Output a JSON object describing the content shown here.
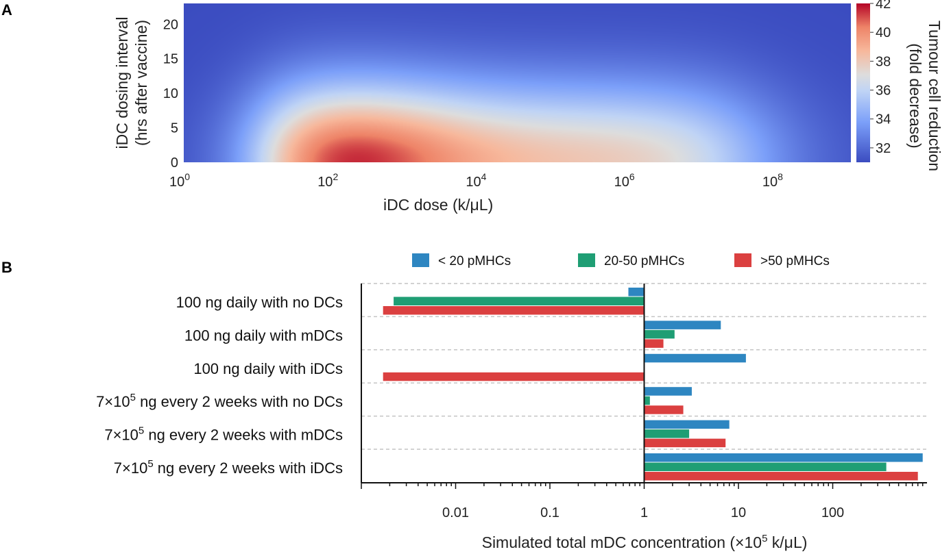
{
  "panel_a_label": "A",
  "panel_b_label": "B",
  "chart_data": [
    {
      "type": "heatmap",
      "panel": "A",
      "xlabel": "iDC dose (k/μL)",
      "ylabel_line1": "iDC dosing interval",
      "ylabel_line2": "(hrs after vaccine)",
      "xscale": "log",
      "xlim_exponent": [
        0,
        9
      ],
      "ylim": [
        0,
        23
      ],
      "x_ticks": [
        {
          "base": "10",
          "exp": "0",
          "value": 1
        },
        {
          "base": "10",
          "exp": "2",
          "value": 100
        },
        {
          "base": "10",
          "exp": "4",
          "value": 10000
        },
        {
          "base": "10",
          "exp": "6",
          "value": 1000000
        },
        {
          "base": "10",
          "exp": "8",
          "value": 100000000
        }
      ],
      "y_ticks": [
        0,
        5,
        10,
        15,
        20
      ],
      "colorbar": {
        "label_line1": "Tumour cell reduction",
        "label_line2": "(fold decrease)",
        "range": [
          31,
          42
        ],
        "ticks": [
          32,
          34,
          36,
          38,
          40,
          42
        ],
        "colormap": "coolwarm",
        "low_color": "#3b4cc0",
        "mid_color": "#dddddd",
        "high_color": "#b40426"
      },
      "peak": {
        "dose_log10": 2,
        "interval_hrs": 0,
        "value": 42
      }
    },
    {
      "type": "bar",
      "panel": "B",
      "orientation": "horizontal",
      "xscale": "log",
      "xlabel": "Simulated total mDC concentration (×10",
      "xlabel_exp": "5",
      "xlabel_tail": " k/μL)",
      "baseline": 1,
      "xlim": [
        0.001,
        1000
      ],
      "x_ticks": [
        "0.01",
        "0.1",
        "1",
        "10",
        "100"
      ],
      "x_tick_values": [
        0.01,
        0.1,
        1,
        10,
        100
      ],
      "legend": [
        {
          "name": "< 20 pMHCs",
          "color": "#2e86c1"
        },
        {
          "name": "20-50 pMHCs",
          "color": "#1f9e74"
        },
        {
          "name": ">50 pMHCs",
          "color": "#db4040"
        }
      ],
      "categories": [
        {
          "prefix": "100 ng daily with no DCs",
          "exp": "",
          "suffix": ""
        },
        {
          "prefix": "100 ng daily with mDCs",
          "exp": "",
          "suffix": ""
        },
        {
          "prefix": "100 ng daily with iDCs",
          "exp": "",
          "suffix": ""
        },
        {
          "prefix": "7×10",
          "exp": "5",
          "suffix": " ng every 2 weeks with no DCs"
        },
        {
          "prefix": "7×10",
          "exp": "5",
          "suffix": " ng every 2 weeks with mDCs"
        },
        {
          "prefix": "7×10",
          "exp": "5",
          "suffix": " ng every 2 weeks with iDCs"
        }
      ],
      "series": [
        {
          "name": "< 20 pMHCs",
          "values": [
            0.68,
            6.5,
            12,
            3.2,
            8,
            900
          ]
        },
        {
          "name": "20-50 pMHCs",
          "values": [
            0.0022,
            2.1,
            null,
            1.15,
            3,
            370
          ]
        },
        {
          "name": ">50 pMHCs",
          "values": [
            0.0017,
            1.6,
            0.0017,
            2.6,
            7.3,
            800
          ]
        }
      ]
    }
  ]
}
